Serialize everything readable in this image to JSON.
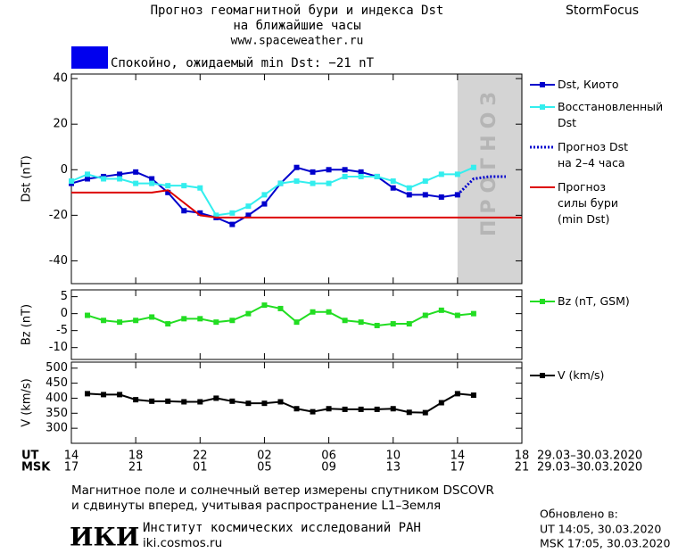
{
  "header": {
    "title": "Прогноз геомагнитной бури и индекса Dst",
    "subtitle": "на ближайшие часы",
    "url": "www.spaceweather.ru",
    "brand": "StormFocus"
  },
  "status": {
    "color": "#0000ee",
    "text": "Спокойно, ожидаемый min Dst: −21 nT"
  },
  "chart_data": [
    {
      "type": "line",
      "ylabel": "Dst (nT)",
      "xlim": [
        14,
        42
      ],
      "ylim": [
        -50,
        42
      ],
      "yticks": [
        -40,
        -20,
        0,
        20,
        40
      ],
      "shade": {
        "x": [
          38,
          42
        ],
        "label": "ПРОГНОЗ",
        "color": "#d4d4d4"
      },
      "series": [
        {
          "name": "Dst, Киото",
          "color": "#0000cc",
          "marker": true,
          "dash": false,
          "x": [
            14,
            15,
            16,
            17,
            18,
            19,
            20,
            21,
            22,
            23,
            24,
            25,
            26,
            27,
            28,
            29,
            30,
            31,
            32,
            33,
            34,
            35,
            36,
            37,
            38
          ],
          "values": [
            -6,
            -4,
            -3,
            -2,
            -1,
            -4,
            -10,
            -18,
            -19,
            -21,
            -24,
            -20,
            -15,
            -6,
            1,
            -1,
            0,
            0,
            -1,
            -3,
            -8,
            -11,
            -11,
            -12,
            -11
          ]
        },
        {
          "name": "Восстановленный\nDst",
          "color": "#33eeee",
          "marker": true,
          "dash": false,
          "x": [
            14,
            15,
            16,
            17,
            18,
            19,
            20,
            21,
            22,
            23,
            24,
            25,
            26,
            27,
            28,
            29,
            30,
            31,
            32,
            33,
            34,
            35,
            36,
            37,
            38,
            39
          ],
          "values": [
            -5,
            -2,
            -4,
            -4,
            -6,
            -6,
            -7,
            -7,
            -8,
            -20,
            -19,
            -16,
            -11,
            -6,
            -5,
            -6,
            -6,
            -3,
            -3,
            -3,
            -5,
            -8,
            -5,
            -2,
            -2,
            1
          ]
        },
        {
          "name": "Прогноз Dst\nна 2–4 часа",
          "color": "#0000cc",
          "marker": false,
          "dash": true,
          "x": [
            38,
            39,
            40,
            41
          ],
          "values": [
            -11,
            -4,
            -3,
            -3
          ]
        },
        {
          "name": "Прогноз\nсилы бури\n(min Dst)",
          "color": "#dd0000",
          "marker": false,
          "dash": false,
          "x": [
            14,
            19,
            20,
            22,
            23,
            42
          ],
          "values": [
            -10,
            -10,
            -9,
            -20,
            -21,
            -21
          ]
        }
      ]
    },
    {
      "type": "line",
      "ylabel": "Bz (nT)",
      "xlim": [
        14,
        42
      ],
      "ylim": [
        -13.5,
        7
      ],
      "yticks": [
        -10,
        -5,
        0,
        5
      ],
      "series": [
        {
          "name": "Bz (nT, GSM)",
          "color": "#22dd22",
          "marker": true,
          "dash": false,
          "x": [
            15,
            16,
            17,
            18,
            19,
            20,
            21,
            22,
            23,
            24,
            25,
            26,
            27,
            28,
            29,
            30,
            31,
            32,
            33,
            34,
            35,
            36,
            37,
            38,
            39
          ],
          "values": [
            -0.5,
            -2,
            -2.5,
            -2,
            -1,
            -3,
            -1.5,
            -1.5,
            -2.5,
            -2,
            0,
            2.5,
            1.5,
            -2.5,
            0.5,
            0.5,
            -2,
            -2.5,
            -3.5,
            -3,
            -3,
            -0.5,
            1,
            -0.5,
            0
          ]
        }
      ]
    },
    {
      "type": "line",
      "ylabel": "V (km/s)",
      "xlim": [
        14,
        42
      ],
      "ylim": [
        250,
        520
      ],
      "yticks": [
        300,
        350,
        400,
        450,
        500
      ],
      "xtick_title": "UT",
      "xticks": [
        14,
        18,
        22,
        {
          "value": 26,
          "label": "02"
        },
        {
          "value": 30,
          "label": "06"
        },
        {
          "value": 34,
          "label": "10"
        },
        {
          "value": 38,
          "label": "14"
        },
        {
          "value": 42,
          "label": "18"
        }
      ],
      "xtick_date": "29.03–30.03.2020",
      "xtick2_title": "MSK",
      "xticks2": [
        {
          "value": 14,
          "label": "17"
        },
        {
          "value": 18,
          "label": "21"
        },
        {
          "value": 22,
          "label": "01"
        },
        {
          "value": 26,
          "label": "05"
        },
        {
          "value": 30,
          "label": "09"
        },
        {
          "value": 34,
          "label": "13"
        },
        {
          "value": 38,
          "label": "17"
        },
        {
          "value": 42,
          "label": "21"
        }
      ],
      "xtick2_date": "29.03–30.03.2020",
      "series": [
        {
          "name": "V (km/s)",
          "color": "#000000",
          "marker": true,
          "dash": false,
          "x": [
            15,
            16,
            17,
            18,
            19,
            20,
            21,
            22,
            23,
            24,
            25,
            26,
            27,
            28,
            29,
            30,
            31,
            32,
            33,
            34,
            35,
            36,
            37,
            38,
            39
          ],
          "values": [
            415,
            412,
            412,
            395,
            390,
            390,
            388,
            388,
            400,
            390,
            383,
            383,
            388,
            365,
            355,
            365,
            363,
            363,
            363,
            365,
            353,
            352,
            385,
            415,
            410
          ]
        }
      ]
    }
  ],
  "footer": {
    "note_line1": "Магнитное поле и солнечный ветер измерены спутником DSCOVR",
    "note_line2": "и сдвинуты вперед, учитывая распространение L1–Земля",
    "logo": "ИКИ",
    "institute": "Институт космических исследований РАН",
    "site": "iki.cosmos.ru",
    "updated_title": "Обновлено в:",
    "updated_ut": "UT  14:05, 30.03.2020",
    "updated_msk": "MSK 17:05, 30.03.2020"
  }
}
